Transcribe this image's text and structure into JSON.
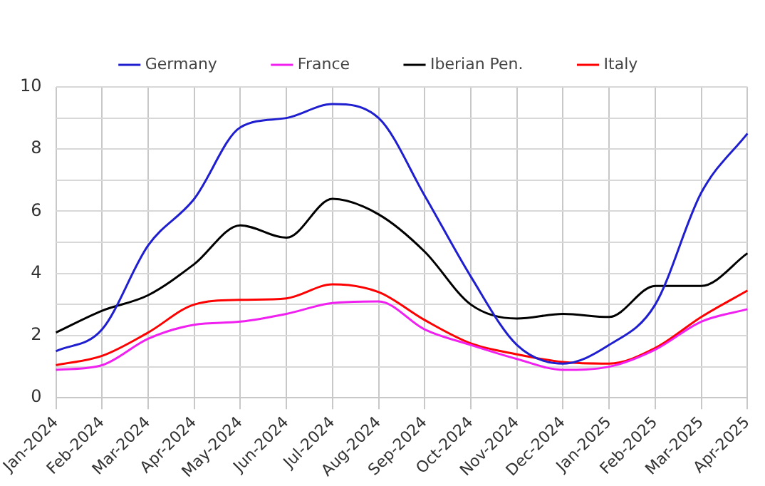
{
  "chart_data": {
    "type": "line",
    "categories": [
      "Jan-2024",
      "Feb-2024",
      "Mar-2024",
      "Apr-2024",
      "May-2024",
      "Jun-2024",
      "Jul-2024",
      "Aug-2024",
      "Sep-2024",
      "Oct-2024",
      "Nov-2024",
      "Dec-2024",
      "Jan-2025",
      "Feb-2025",
      "Mar-2025",
      "Apr-2025"
    ],
    "series": [
      {
        "name": "Germany",
        "color": "#1f1fd0",
        "values": [
          1.5,
          2.2,
          4.9,
          6.4,
          8.7,
          9.0,
          9.45,
          9.0,
          6.5,
          3.9,
          1.7,
          1.1,
          1.7,
          3.0,
          6.6,
          8.5
        ]
      },
      {
        "name": "France",
        "color": "#f020f0",
        "values": [
          0.9,
          1.05,
          1.9,
          2.35,
          2.45,
          2.7,
          3.05,
          3.1,
          2.2,
          1.7,
          1.25,
          0.9,
          1.0,
          1.55,
          2.45,
          2.85
        ]
      },
      {
        "name": "Iberian Pen.",
        "color": "#000000",
        "values": [
          2.1,
          2.8,
          3.3,
          4.3,
          5.55,
          5.15,
          6.4,
          5.9,
          4.7,
          3.0,
          2.55,
          2.7,
          2.6,
          3.6,
          3.6,
          4.65
        ]
      },
      {
        "name": "Italy",
        "color": "#ff0000",
        "values": [
          1.05,
          1.35,
          2.1,
          3.0,
          3.15,
          3.2,
          3.65,
          3.4,
          2.5,
          1.75,
          1.4,
          1.15,
          1.1,
          1.6,
          2.6,
          3.45
        ]
      }
    ],
    "ylim": [
      0,
      10
    ],
    "yticks": [
      0,
      {
        "value": 1,
        "label": null
      },
      2,
      {
        "value": 3,
        "label": null
      },
      4,
      {
        "value": 5,
        "label": null
      },
      6,
      {
        "value": 7,
        "label": null
      },
      8,
      {
        "value": 9,
        "label": null
      },
      10
    ],
    "grid": true,
    "legend": "top",
    "marker": "none",
    "line_style": "solid"
  }
}
